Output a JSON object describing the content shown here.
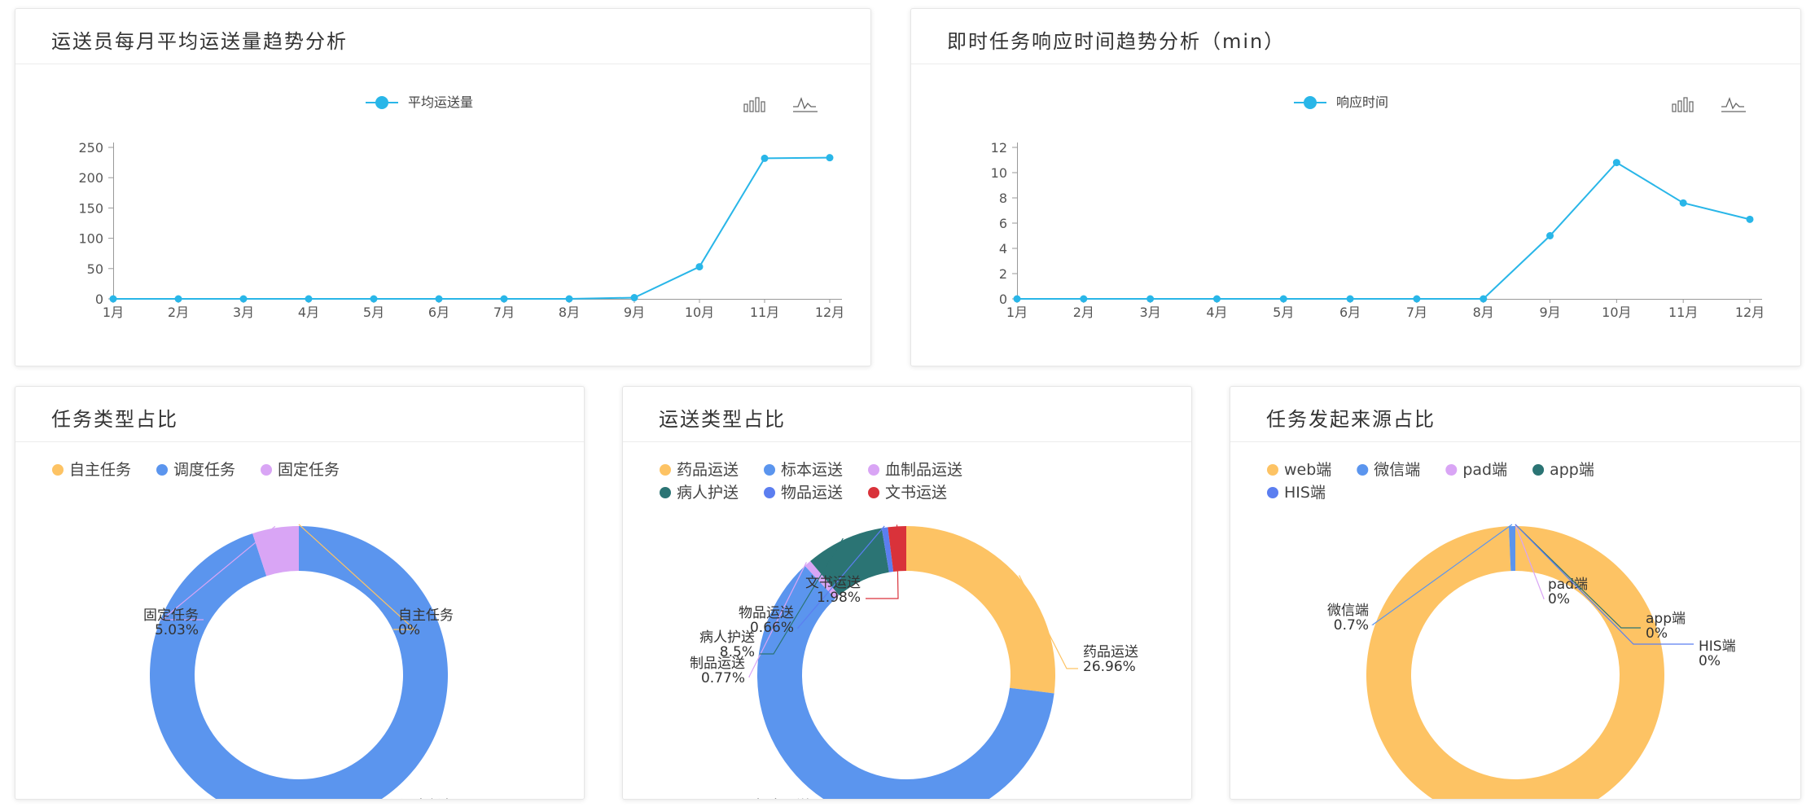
{
  "colors": {
    "line": "#29b6e8",
    "axis": "#999999",
    "grid": "#e8e8e8",
    "toolbox": "#666666"
  },
  "toolbox_icons": [
    "bar-chart-icon",
    "line-chart-icon"
  ],
  "line_cards": [
    {
      "title": "运送员每月平均运送量趋势分析",
      "chart_data": {
        "type": "line",
        "categories": [
          "1月",
          "2月",
          "3月",
          "4月",
          "5月",
          "6月",
          "7月",
          "8月",
          "9月",
          "10月",
          "11月",
          "12月"
        ],
        "series": [
          {
            "name": "平均运送量",
            "values": [
              0,
              0,
              0,
              0,
              0,
              0,
              0,
              0,
              2,
              53,
              232,
              233
            ]
          }
        ],
        "ylim": [
          0,
          250
        ],
        "yticks": [
          0,
          50,
          100,
          150,
          200,
          250
        ],
        "grid": false,
        "legend": "top-center"
      }
    },
    {
      "title": "即时任务响应时间趋势分析（min）",
      "chart_data": {
        "type": "line",
        "categories": [
          "1月",
          "2月",
          "3月",
          "4月",
          "5月",
          "6月",
          "7月",
          "8月",
          "9月",
          "10月",
          "11月",
          "12月"
        ],
        "series": [
          {
            "name": "响应时间",
            "values": [
              0,
              0,
              0,
              0,
              0,
              0,
              0,
              0,
              5,
              10.8,
              7.6,
              6.3
            ]
          }
        ],
        "ylim": [
          0,
          12
        ],
        "yticks": [
          0,
          2,
          4,
          6,
          8,
          10,
          12
        ],
        "grid": false,
        "legend": "top-center"
      }
    }
  ],
  "pie_cards": [
    {
      "title": "任务类型占比",
      "chart_data": {
        "type": "pie",
        "donut": true,
        "legend": "top-left",
        "slices": [
          {
            "name": "自主任务",
            "value": 0,
            "label": "0%",
            "color": "#fdc364"
          },
          {
            "name": "调度任务",
            "value": 94.97,
            "label": "94.97%",
            "color": "#5b95ee"
          },
          {
            "name": "固定任务",
            "value": 5.03,
            "label": "5.03%",
            "color": "#d9a5f5"
          }
        ]
      }
    },
    {
      "title": "运送类型占比",
      "chart_data": {
        "type": "pie",
        "donut": true,
        "legend": "top-left",
        "slices": [
          {
            "name": "药品运送",
            "value": 26.96,
            "label": "26.96%",
            "color": "#fdc364"
          },
          {
            "name": "标本运送",
            "value": 61.13,
            "label": "61.13%",
            "color": "#5b95ee"
          },
          {
            "name": "血制品运送",
            "value": 0.77,
            "label": "0.77%",
            "color": "#d9a5f5",
            "display_name": "制品运送"
          },
          {
            "name": "病人护送",
            "value": 8.5,
            "label": "8.5%",
            "color": "#2b7474"
          },
          {
            "name": "物品运送",
            "value": 0.66,
            "label": "0.66%",
            "color": "#5b7ef0"
          },
          {
            "name": "文书运送",
            "value": 1.98,
            "label": "1.98%",
            "color": "#d9323a"
          }
        ]
      }
    },
    {
      "title": "任务发起来源占比",
      "chart_data": {
        "type": "pie",
        "donut": true,
        "legend": "top-left",
        "slices": [
          {
            "name": "web端",
            "value": 99.3,
            "label": "99.3%",
            "color": "#fdc364"
          },
          {
            "name": "微信端",
            "value": 0.7,
            "label": "0.7%",
            "color": "#5b95ee"
          },
          {
            "name": "pad端",
            "value": 0,
            "label": "0%",
            "color": "#d9a5f5"
          },
          {
            "name": "app端",
            "value": 0,
            "label": "0%",
            "color": "#2b7474"
          },
          {
            "name": "HIS端",
            "value": 0,
            "label": "0%",
            "color": "#5b7ef0"
          }
        ]
      }
    }
  ]
}
